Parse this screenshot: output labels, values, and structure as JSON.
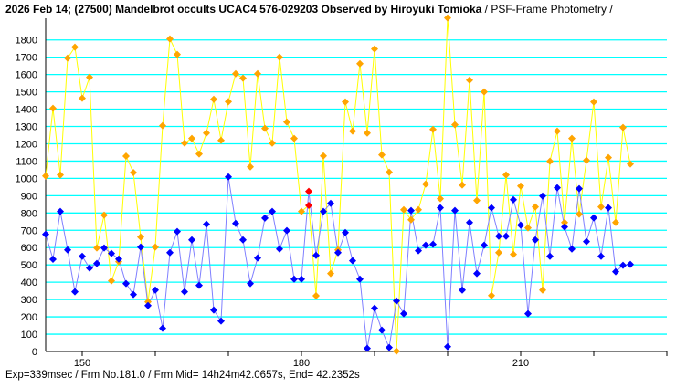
{
  "header": {
    "title": "2026 Feb 14; (27500) Mandelbrot occults UCAC4 576-029203 Observed by Hiroyuki Tomioka",
    "subtitle": " / PSF-Frame Photometry /"
  },
  "footer": {
    "text": "Exp=339msec / Frm No.181.0 / Frm Mid= 14h24m42.0657s,  End= 42.2352s"
  },
  "chart_data": {
    "type": "line",
    "title": "2026 Feb 14; (27500) Mandelbrot occults UCAC4 576-029203 Observed by Hiroyuki Tomioka / PSF-Frame Photometry /",
    "xlabel": "",
    "ylabel": "",
    "xlim": [
      145,
      230
    ],
    "ylim": [
      0,
      1900
    ],
    "grid": true,
    "x_ticks": [
      150,
      180,
      210
    ],
    "y_ticks": [
      0,
      100,
      200,
      300,
      400,
      500,
      600,
      700,
      800,
      900,
      1000,
      1100,
      1200,
      1300,
      1400,
      1500,
      1600,
      1700,
      1800
    ],
    "highlight_frame": 181,
    "x_start": 145,
    "series": [
      {
        "name": "orange",
        "color": "#ffa500",
        "line_color": "#ffff00",
        "values": [
          1014,
          1405,
          1020,
          1695,
          1758,
          1463,
          1584,
          598,
          788,
          408,
          519,
          1129,
          1034,
          661,
          287,
          603,
          1305,
          1806,
          1716,
          1204,
          1231,
          1141,
          1262,
          1457,
          1220,
          1443,
          1605,
          1579,
          1067,
          1605,
          1289,
          1204,
          1700,
          1326,
          1231,
          809,
          844,
          322,
          1130,
          450,
          587,
          1442,
          1273,
          1663,
          1262,
          1748,
          1136,
          1036,
          2,
          819,
          761,
          819,
          967,
          1283,
          883,
          1927,
          1310,
          962,
          1568,
          872,
          1500,
          323,
          571,
          1020,
          561,
          956,
          714,
          835,
          355,
          1099,
          1273,
          745,
          1231,
          793,
          1104,
          1442,
          835,
          1120,
          745,
          1294,
          1083
        ]
      },
      {
        "name": "blue",
        "color": "#0000ff",
        "line_color": "#8080ff",
        "values": [
          677,
          533,
          809,
          587,
          345,
          550,
          482,
          508,
          598,
          566,
          534,
          392,
          329,
          603,
          265,
          355,
          134,
          571,
          693,
          345,
          645,
          382,
          735,
          239,
          176,
          1009,
          740,
          645,
          392,
          540,
          771,
          809,
          592,
          698,
          418,
          418,
          925,
          555,
          809,
          856,
          571,
          687,
          524,
          418,
          18,
          250,
          123,
          23,
          292,
          218,
          814,
          582,
          614,
          619,
          830,
          28,
          814,
          355,
          745,
          450,
          614,
          830,
          666,
          666,
          877,
          730,
          218,
          645,
          898,
          550,
          946,
          719,
          592,
          941,
          635,
          772,
          550,
          830,
          461,
          498,
          503
        ]
      }
    ]
  }
}
